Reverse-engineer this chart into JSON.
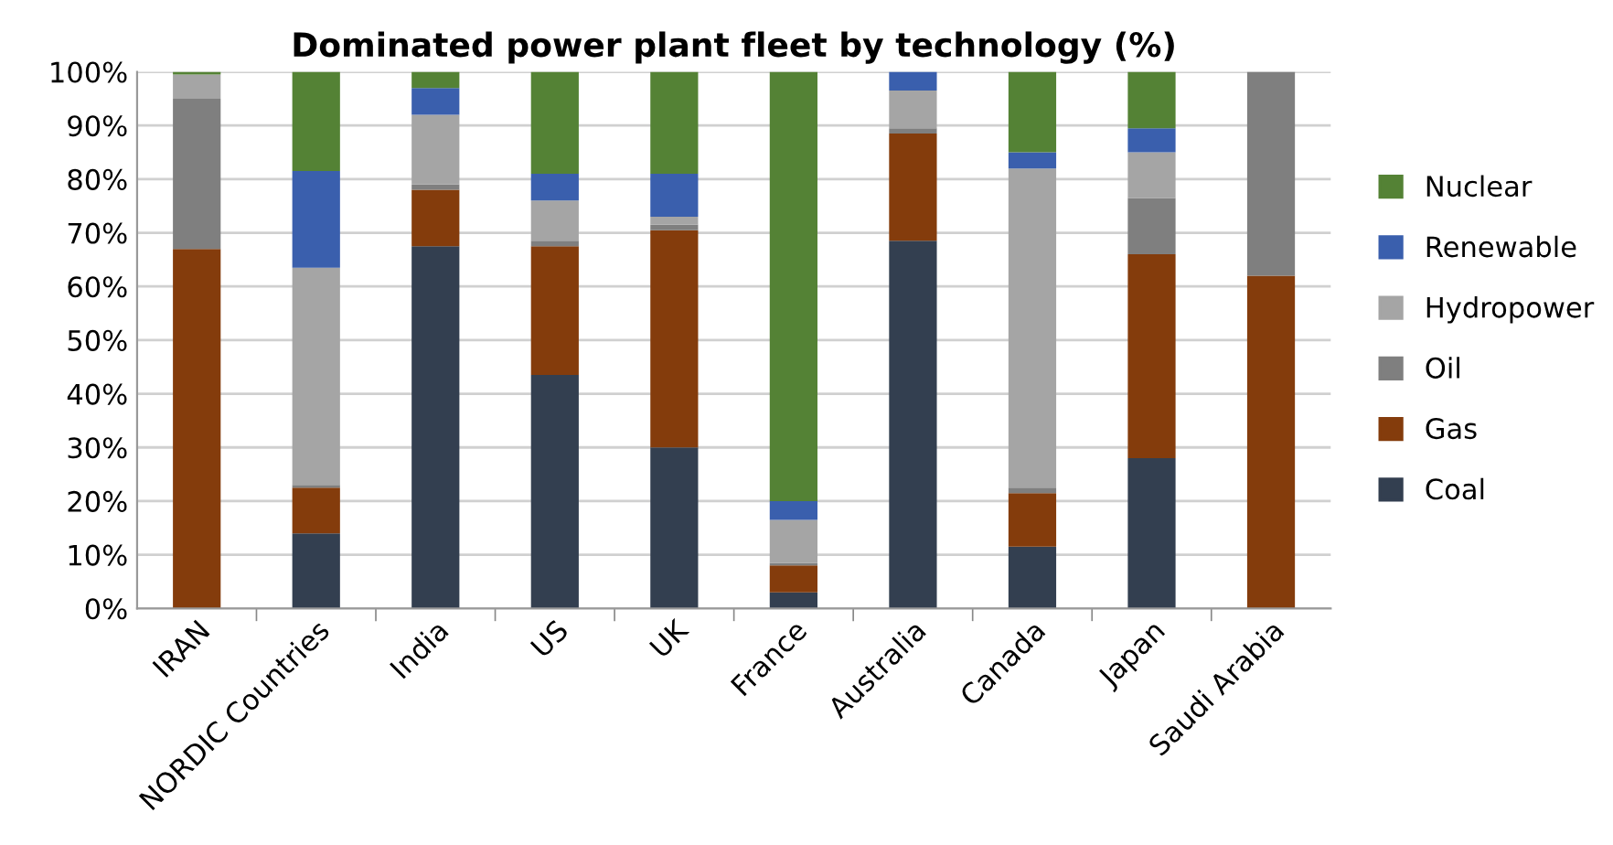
{
  "chart_data": {
    "type": "bar",
    "title": "Dominated power plant fleet by technology (%)",
    "stacked": true,
    "categories": [
      "IRAN",
      "NORDIC Countries",
      "India",
      "US",
      "UK",
      "France",
      "Australia",
      "Canada",
      "Japan",
      "Saudi Arabia"
    ],
    "series": [
      {
        "name": "Coal",
        "color": "#333f50",
        "values": [
          0,
          14,
          67.5,
          43.5,
          30,
          3,
          68.5,
          11.5,
          28,
          0
        ]
      },
      {
        "name": "Gas",
        "color": "#843c0c",
        "values": [
          67,
          8.5,
          10.5,
          24,
          40.5,
          5,
          20,
          10,
          38,
          62
        ]
      },
      {
        "name": "Oil",
        "color": "#7f7f7f",
        "values": [
          28,
          0.5,
          1,
          1,
          1,
          0.5,
          1,
          1,
          10.5,
          38
        ]
      },
      {
        "name": "Hydropower",
        "color": "#a5a5a5",
        "values": [
          4.5,
          40.5,
          13,
          7.5,
          1.5,
          8,
          7,
          59.5,
          8.5,
          0
        ]
      },
      {
        "name": "Renewable",
        "color": "#3a5fad",
        "values": [
          0,
          18,
          5,
          5,
          8,
          3.5,
          3.5,
          3,
          4.5,
          0
        ]
      },
      {
        "name": "Nuclear",
        "color": "#548235",
        "values": [
          0.5,
          18.5,
          3,
          19,
          19,
          80,
          0,
          15,
          10.5,
          0
        ]
      }
    ],
    "ylim": [
      0,
      100
    ],
    "yticks": [
      {
        "value": 0,
        "label": "0%"
      },
      {
        "value": 10,
        "label": "10%"
      },
      {
        "value": 20,
        "label": "20%"
      },
      {
        "value": 30,
        "label": "30%"
      },
      {
        "value": 40,
        "label": "40%"
      },
      {
        "value": 50,
        "label": "50%"
      },
      {
        "value": 60,
        "label": "60%"
      },
      {
        "value": 70,
        "label": "70%"
      },
      {
        "value": 80,
        "label": "80%"
      },
      {
        "value": 90,
        "label": "90%"
      },
      {
        "value": 100,
        "label": "100%"
      }
    ],
    "grid": "y",
    "legend": "right"
  }
}
